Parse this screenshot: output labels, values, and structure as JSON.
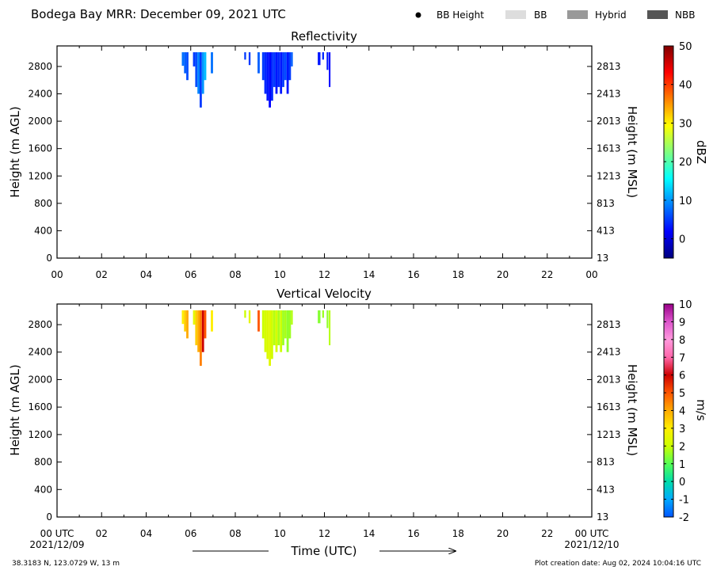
{
  "header": {
    "title": "Bodega Bay MRR:  December 09, 2021 UTC",
    "legend": [
      {
        "label": "BB Height",
        "kind": "dot",
        "color": "#000000"
      },
      {
        "label": "BB",
        "kind": "box",
        "color": "#dddddd"
      },
      {
        "label": "Hybrid",
        "kind": "box",
        "color": "#999999"
      },
      {
        "label": "NBB",
        "kind": "box",
        "color": "#555555"
      }
    ]
  },
  "footer": {
    "coords": "38.3183 N, 123.0729 W, 13 m",
    "creation": "Plot creation date: Aug 02, 2024 10:04:16 UTC",
    "start_date": "2021/12/09",
    "end_date": "2021/12/10",
    "time_label": "Time (UTC)"
  },
  "chart_data": [
    {
      "type": "heatmap",
      "title": "Reflectivity",
      "ylabel": "Height (m AGL)",
      "ylabel_right": "Height (m MSL)",
      "xlim": [
        0,
        24
      ],
      "ylim": [
        0,
        3100
      ],
      "x_ticks": [
        "00",
        "02",
        "04",
        "06",
        "08",
        "10",
        "12",
        "14",
        "16",
        "18",
        "20",
        "22",
        "00"
      ],
      "y_ticks": [
        "0",
        "400",
        "800",
        "1200",
        "1600",
        "2000",
        "2400",
        "2800"
      ],
      "y_ticks_right": [
        "13",
        "413",
        "813",
        "1213",
        "1613",
        "2013",
        "2413",
        "2813"
      ],
      "colorbar": {
        "label": "dBZ",
        "range": [
          -5,
          50
        ],
        "ticks": [
          "0",
          "10",
          "20",
          "30",
          "40",
          "50"
        ],
        "stops": [
          "#00007f",
          "#0000ff",
          "#007fff",
          "#00ffff",
          "#7fff7f",
          "#ffff00",
          "#ff7f00",
          "#ff0000",
          "#7f0000"
        ]
      },
      "columns": [
        {
          "x": 5.6,
          "w": 0.1,
          "bottom": 2810,
          "value": 8
        },
        {
          "x": 5.7,
          "w": 0.1,
          "bottom": 2700,
          "value": 7
        },
        {
          "x": 5.8,
          "w": 0.1,
          "bottom": 2600,
          "value": 6
        },
        {
          "x": 6.1,
          "w": 0.1,
          "bottom": 2800,
          "value": 5
        },
        {
          "x": 6.2,
          "w": 0.1,
          "bottom": 2500,
          "value": 6
        },
        {
          "x": 6.3,
          "w": 0.1,
          "bottom": 2400,
          "value": 9
        },
        {
          "x": 6.4,
          "w": 0.1,
          "bottom": 2200,
          "value": 5
        },
        {
          "x": 6.5,
          "w": 0.1,
          "bottom": 2400,
          "value": 10
        },
        {
          "x": 6.6,
          "w": 0.1,
          "bottom": 2600,
          "value": 12
        },
        {
          "x": 6.9,
          "w": 0.1,
          "bottom": 2700,
          "value": 8
        },
        {
          "x": 8.4,
          "w": 0.08,
          "bottom": 2900,
          "value": 5
        },
        {
          "x": 8.6,
          "w": 0.08,
          "bottom": 2820,
          "value": 5
        },
        {
          "x": 9.0,
          "w": 0.1,
          "bottom": 2700,
          "value": 7
        },
        {
          "x": 9.2,
          "w": 0.1,
          "bottom": 2600,
          "value": 5
        },
        {
          "x": 9.3,
          "w": 0.1,
          "bottom": 2400,
          "value": 4
        },
        {
          "x": 9.4,
          "w": 0.1,
          "bottom": 2300,
          "value": 3
        },
        {
          "x": 9.5,
          "w": 0.1,
          "bottom": 2200,
          "value": 2
        },
        {
          "x": 9.6,
          "w": 0.1,
          "bottom": 2300,
          "value": 4
        },
        {
          "x": 9.7,
          "w": 0.1,
          "bottom": 2500,
          "value": 5
        },
        {
          "x": 9.8,
          "w": 0.1,
          "bottom": 2400,
          "value": 3
        },
        {
          "x": 9.9,
          "w": 0.1,
          "bottom": 2500,
          "value": 4
        },
        {
          "x": 10.0,
          "w": 0.1,
          "bottom": 2400,
          "value": 3
        },
        {
          "x": 10.1,
          "w": 0.1,
          "bottom": 2500,
          "value": 5
        },
        {
          "x": 10.2,
          "w": 0.1,
          "bottom": 2600,
          "value": 6
        },
        {
          "x": 10.3,
          "w": 0.1,
          "bottom": 2400,
          "value": 3
        },
        {
          "x": 10.4,
          "w": 0.1,
          "bottom": 2600,
          "value": 5
        },
        {
          "x": 10.5,
          "w": 0.08,
          "bottom": 2800,
          "value": 7
        },
        {
          "x": 11.7,
          "w": 0.12,
          "bottom": 2820,
          "value": 3
        },
        {
          "x": 11.9,
          "w": 0.08,
          "bottom": 2900,
          "value": 4
        },
        {
          "x": 12.1,
          "w": 0.08,
          "bottom": 2750,
          "value": 3
        },
        {
          "x": 12.2,
          "w": 0.06,
          "bottom": 2500,
          "value": 2
        }
      ]
    },
    {
      "type": "heatmap",
      "title": "Vertical Velocity",
      "ylabel": "Height (m AGL)",
      "ylabel_right": "Height (m MSL)",
      "xlim": [
        0,
        24
      ],
      "ylim": [
        0,
        3100
      ],
      "x_ticks": [
        "00 UTC",
        "02",
        "04",
        "06",
        "08",
        "10",
        "12",
        "14",
        "16",
        "18",
        "20",
        "22",
        "00 UTC"
      ],
      "y_ticks": [
        "0",
        "400",
        "800",
        "1200",
        "1600",
        "2000",
        "2400",
        "2800"
      ],
      "y_ticks_right": [
        "13",
        "413",
        "813",
        "1213",
        "1613",
        "2013",
        "2413",
        "2813"
      ],
      "colorbar": {
        "label": "m/s",
        "range": [
          -2,
          10
        ],
        "ticks": [
          "-2",
          "-1",
          "0",
          "1",
          "2",
          "3",
          "4",
          "5",
          "6",
          "7",
          "8",
          "9",
          "10"
        ],
        "stops": [
          "#0055ff",
          "#00aaff",
          "#00ddaa",
          "#55ff55",
          "#ccff00",
          "#ffee00",
          "#ffaa00",
          "#ff5500",
          "#cc0000",
          "#ff66aa",
          "#ff99dd",
          "#dd55cc",
          "#990088"
        ]
      },
      "columns": [
        {
          "x": 5.6,
          "w": 0.1,
          "bottom": 2810,
          "value": 3
        },
        {
          "x": 5.7,
          "w": 0.1,
          "bottom": 2700,
          "value": 3.5
        },
        {
          "x": 5.8,
          "w": 0.1,
          "bottom": 2600,
          "value": 4
        },
        {
          "x": 6.1,
          "w": 0.1,
          "bottom": 2800,
          "value": 2.5
        },
        {
          "x": 6.2,
          "w": 0.1,
          "bottom": 2500,
          "value": 3.5
        },
        {
          "x": 6.3,
          "w": 0.1,
          "bottom": 2400,
          "value": 4
        },
        {
          "x": 6.4,
          "w": 0.1,
          "bottom": 2200,
          "value": 4.5
        },
        {
          "x": 6.5,
          "w": 0.1,
          "bottom": 2400,
          "value": 6
        },
        {
          "x": 6.6,
          "w": 0.1,
          "bottom": 2600,
          "value": 5
        },
        {
          "x": 6.9,
          "w": 0.1,
          "bottom": 2700,
          "value": 3
        },
        {
          "x": 8.4,
          "w": 0.08,
          "bottom": 2900,
          "value": 2
        },
        {
          "x": 8.6,
          "w": 0.08,
          "bottom": 2820,
          "value": 2.5
        },
        {
          "x": 9.0,
          "w": 0.1,
          "bottom": 2700,
          "value": 5
        },
        {
          "x": 9.2,
          "w": 0.1,
          "bottom": 2600,
          "value": 2
        },
        {
          "x": 9.3,
          "w": 0.1,
          "bottom": 2400,
          "value": 2.2
        },
        {
          "x": 9.4,
          "w": 0.1,
          "bottom": 2300,
          "value": 2.3
        },
        {
          "x": 9.5,
          "w": 0.1,
          "bottom": 2200,
          "value": 2.4
        },
        {
          "x": 9.6,
          "w": 0.1,
          "bottom": 2300,
          "value": 2.1
        },
        {
          "x": 9.7,
          "w": 0.1,
          "bottom": 2500,
          "value": 1.8
        },
        {
          "x": 9.8,
          "w": 0.1,
          "bottom": 2400,
          "value": 2.2
        },
        {
          "x": 9.9,
          "w": 0.1,
          "bottom": 2500,
          "value": 1.7
        },
        {
          "x": 10.0,
          "w": 0.1,
          "bottom": 2400,
          "value": 2.0
        },
        {
          "x": 10.1,
          "w": 0.1,
          "bottom": 2500,
          "value": 1.6
        },
        {
          "x": 10.2,
          "w": 0.1,
          "bottom": 2600,
          "value": 1.7
        },
        {
          "x": 10.3,
          "w": 0.1,
          "bottom": 2400,
          "value": 1.5
        },
        {
          "x": 10.4,
          "w": 0.1,
          "bottom": 2600,
          "value": 1.6
        },
        {
          "x": 10.5,
          "w": 0.08,
          "bottom": 2800,
          "value": 1.8
        },
        {
          "x": 11.7,
          "w": 0.12,
          "bottom": 2820,
          "value": 1.4
        },
        {
          "x": 11.9,
          "w": 0.08,
          "bottom": 2900,
          "value": 1.6
        },
        {
          "x": 12.1,
          "w": 0.08,
          "bottom": 2750,
          "value": 1.5
        },
        {
          "x": 12.2,
          "w": 0.06,
          "bottom": 2500,
          "value": 1.8
        }
      ]
    }
  ]
}
